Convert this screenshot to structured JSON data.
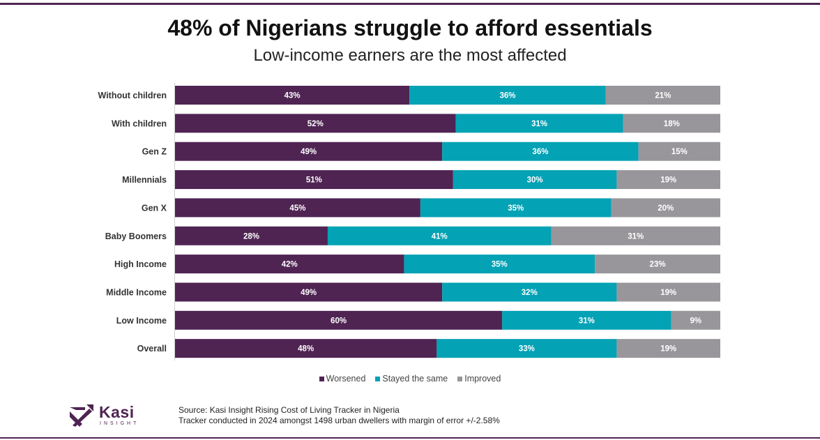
{
  "page": {
    "title": "48% of Nigerians struggle to afford essentials",
    "subtitle": "Low-income earners are the most affected",
    "source_line1": "Source: Kasi Insight Rising Cost of Living Tracker in Nigeria",
    "source_line2": "Tracker conducted in 2024 amongst 1498 urban dwellers with margin of error +/-2.58%",
    "logo_name": "Kasi",
    "logo_sub": "INSIGHT"
  },
  "chart_data": {
    "type": "bar",
    "orientation": "horizontal",
    "stacked": true,
    "percent_stacked": true,
    "title": "48% of Nigerians struggle to afford essentials",
    "subtitle": "Low-income earners are the most affected",
    "categories": [
      "Without children",
      "With children",
      "Gen Z",
      "Millennials",
      "Gen X",
      "Baby Boomers",
      "High Income",
      "Middle Income",
      "Low Income",
      "Overall"
    ],
    "series": [
      {
        "name": "Worsened",
        "color": "#4f2453",
        "values": [
          43,
          52,
          49,
          51,
          45,
          28,
          42,
          49,
          60,
          48
        ]
      },
      {
        "name": "Stayed the same",
        "color": "#03a2b5",
        "values": [
          36,
          31,
          36,
          30,
          35,
          41,
          35,
          32,
          31,
          33
        ]
      },
      {
        "name": "Improved",
        "color": "#98969a",
        "values": [
          21,
          18,
          15,
          19,
          20,
          31,
          23,
          19,
          9,
          19
        ]
      }
    ],
    "value_suffix": "%",
    "xlim": [
      0,
      100
    ],
    "legend_position": "bottom",
    "grid": false
  }
}
